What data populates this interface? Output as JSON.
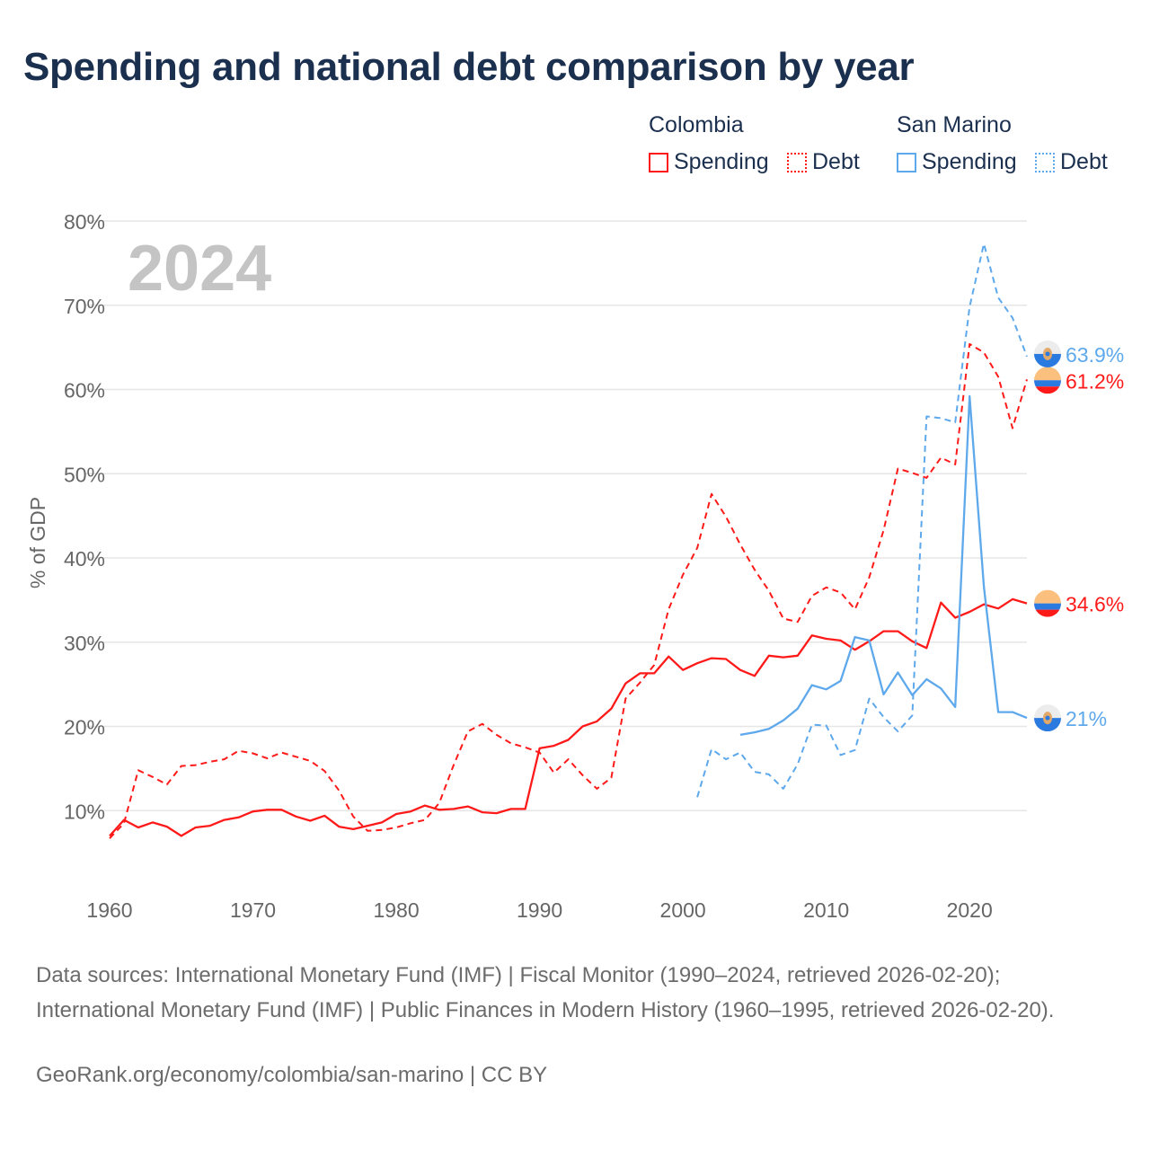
{
  "title": "Spending and national debt comparison by year",
  "legend": {
    "groups": [
      {
        "country": "Colombia",
        "items": [
          {
            "label": "Spending",
            "style": "solid"
          },
          {
            "label": "Debt",
            "style": "dotted"
          }
        ],
        "color": "#ff1a1a"
      },
      {
        "country": "San Marino",
        "items": [
          {
            "label": "Spending",
            "style": "solid"
          },
          {
            "label": "Debt",
            "style": "dotted"
          }
        ],
        "color": "#5ea8ec"
      }
    ]
  },
  "year_label": "2024",
  "footer": {
    "sources": "Data sources: International Monetary Fund (IMF) | Fiscal Monitor (1990–2024, retrieved 2026-02-20); International Monetary Fund (IMF) | Public Finances in Modern History (1960–1995, retrieved 2026-02-20).",
    "credit": "GeoRank.org/economy/colombia/san-marino | CC BY"
  },
  "chart_data": {
    "type": "line",
    "title": "Spending and national debt comparison by year",
    "ylabel": "% of GDP",
    "xlabel": "",
    "xlim": [
      1960,
      2024
    ],
    "ylim": [
      0,
      80
    ],
    "x_ticks": [
      "1960",
      "1970",
      "1980",
      "1990",
      "2000",
      "2010",
      "2020"
    ],
    "y_ticks": [
      "10%",
      "20%",
      "30%",
      "40%",
      "50%",
      "60%",
      "70%",
      "80%"
    ],
    "grid": true,
    "legend_position": "top-right",
    "series": [
      {
        "name": "Colombia Spending",
        "color": "#ff1a1a",
        "dash": false,
        "start": 1960,
        "end_label": "34.6%",
        "flag": "colombia",
        "values": [
          7.0,
          8.9,
          8.0,
          8.6,
          8.1,
          7.0,
          8.0,
          8.2,
          8.9,
          9.2,
          9.9,
          10.1,
          10.1,
          9.3,
          8.8,
          9.4,
          8.1,
          7.8,
          8.2,
          8.6,
          9.6,
          9.9,
          10.6,
          10.1,
          10.2,
          10.5,
          9.8,
          9.7,
          10.2,
          10.2,
          17.4,
          17.7,
          18.4,
          20.0,
          20.6,
          22.1,
          25.1,
          26.3,
          26.3,
          28.3,
          26.7,
          27.5,
          28.1,
          28.0,
          26.7,
          26.0,
          28.4,
          28.2,
          28.4,
          30.8,
          30.4,
          30.2,
          29.1,
          30.1,
          31.3,
          31.3,
          30.1,
          29.3,
          34.7,
          32.9,
          33.6,
          34.5,
          34.0,
          35.1,
          34.6
        ]
      },
      {
        "name": "Colombia Debt",
        "color": "#ff1a1a",
        "dash": true,
        "start": 1960,
        "end_label": "61.2%",
        "flag": "colombia",
        "values": [
          6.7,
          8.5,
          14.8,
          14.0,
          13.1,
          15.3,
          15.4,
          15.8,
          16.1,
          17.1,
          16.8,
          16.2,
          16.9,
          16.4,
          15.9,
          14.7,
          12.4,
          9.3,
          7.6,
          7.7,
          8.0,
          8.5,
          8.9,
          10.9,
          15.4,
          19.4,
          20.3,
          19.0,
          18.0,
          17.5,
          16.9,
          14.5,
          16.1,
          14.2,
          12.6,
          13.9,
          23.3,
          25.2,
          27.3,
          33.9,
          38.0,
          41.2,
          47.6,
          44.9,
          41.6,
          38.6,
          36.1,
          32.8,
          32.4,
          35.5,
          36.5,
          35.9,
          33.9,
          37.7,
          43.3,
          50.6,
          50.1,
          49.5,
          51.9,
          51.1,
          65.4,
          64.4,
          61.5,
          55.4,
          61.2
        ]
      },
      {
        "name": "San Marino Spending",
        "color": "#5ea8ec",
        "dash": false,
        "start": 2004,
        "end_label": "21%",
        "flag": "san-marino",
        "values": [
          19.0,
          19.3,
          19.7,
          20.7,
          22.1,
          24.9,
          24.4,
          25.4,
          30.6,
          30.2,
          23.8,
          26.4,
          23.7,
          25.6,
          24.5,
          22.3,
          59.2,
          36.6,
          21.7,
          21.7,
          21.0
        ]
      },
      {
        "name": "San Marino Debt",
        "color": "#5ea8ec",
        "dash": true,
        "start": 2001,
        "end_label": "63.9%",
        "flag": "san-marino",
        "values": [
          11.6,
          17.3,
          16.1,
          16.9,
          14.6,
          14.3,
          12.6,
          15.5,
          20.2,
          20.1,
          16.6,
          17.2,
          23.3,
          21.1,
          19.4,
          21.3,
          56.8,
          56.6,
          56.1,
          69.8,
          77.3,
          70.9,
          68.5,
          63.9
        ]
      }
    ]
  }
}
